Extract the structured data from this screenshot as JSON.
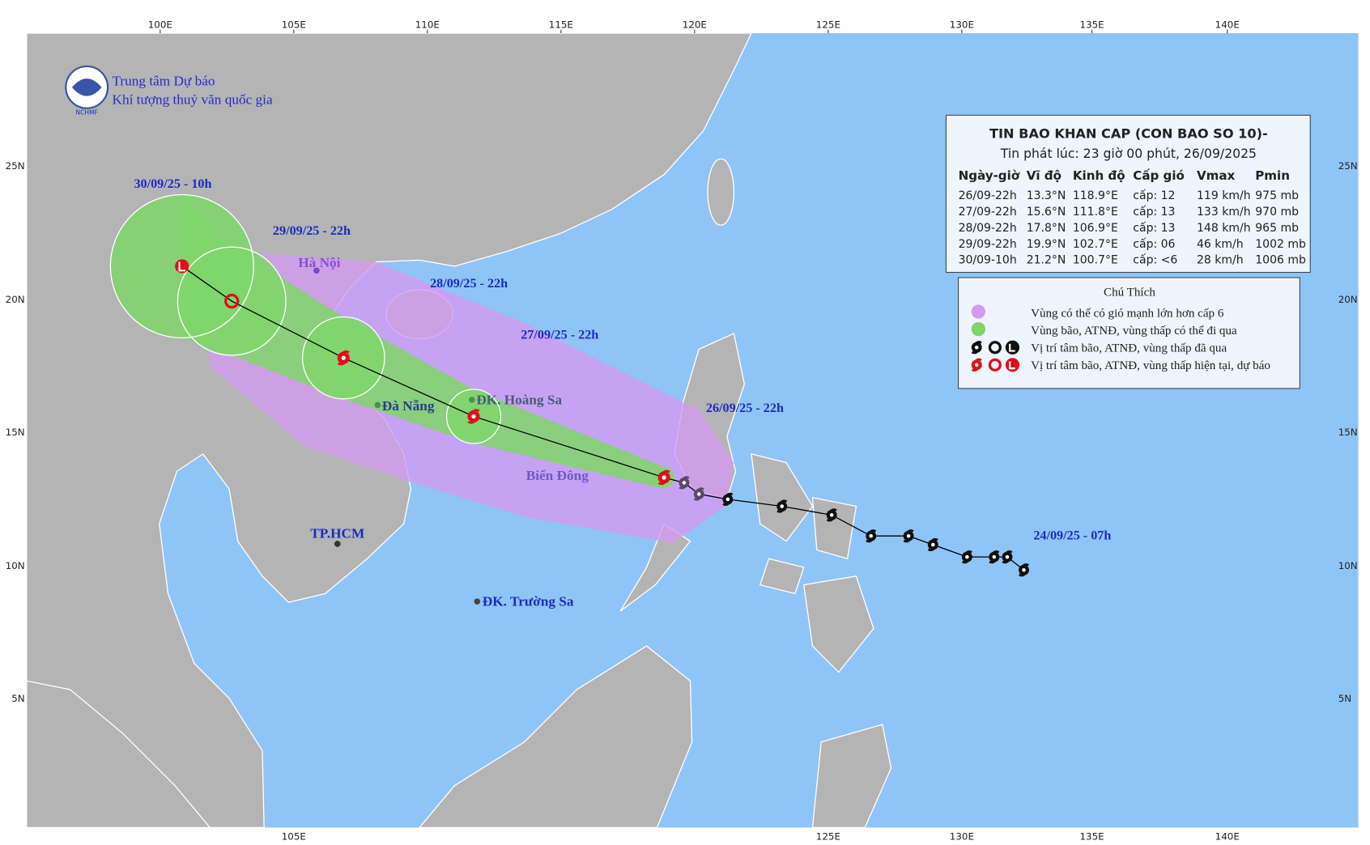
{
  "agency": {
    "line1": "Trung tâm Dự báo",
    "line2": "Khí tượng thuỷ văn quốc gia",
    "logo": "NCHMF"
  },
  "bulletin": {
    "title": "TIN BAO KHAN CAP (CON BAO SO 10)-",
    "issued": "Tin phát lúc: 23 giờ 00 phút, 26/09/2025",
    "columns": [
      "Ngày-giờ",
      "Vĩ độ",
      "Kinh độ",
      "Cấp gió",
      "Vmax",
      "Pmin"
    ],
    "rows": [
      [
        "26/09-22h",
        "13.3°N",
        "118.9°E",
        "cấp: 12",
        "119 km/h",
        "975 mb"
      ],
      [
        "27/09-22h",
        "15.6°N",
        "111.8°E",
        "cấp: 13",
        "133 km/h",
        "970 mb"
      ],
      [
        "28/09-22h",
        "17.8°N",
        "106.9°E",
        "cấp: 13",
        "148 km/h",
        "965 mb"
      ],
      [
        "29/09-22h",
        "19.9°N",
        "102.7°E",
        "cấp: 06",
        "46 km/h",
        "1002 mb"
      ],
      [
        "30/09-10h",
        "21.2°N",
        "100.7°E",
        "cấp: <6",
        "28 km/h",
        "1006 mb"
      ]
    ]
  },
  "legend": {
    "title": "Chú Thích",
    "items": [
      "Vùng có thể có gió mạnh lớn hơn cấp 6",
      "Vùng bão, ATNĐ, vùng thấp có thể đi qua",
      "Vị trí tâm bão, ATNĐ, vùng thấp đã qua",
      "Vị trí tâm bão, ATNĐ, vùng thấp hiện tại, dự báo"
    ]
  },
  "track_labels": [
    "30/09/25 - 10h",
    "29/09/25 - 22h",
    "28/09/25 - 22h",
    "27/09/25 - 22h",
    "26/09/25 - 22h",
    "24/09/25 - 07h"
  ],
  "places": [
    "Hà Nội",
    "Đà Nẵng",
    "ĐK. Hoàng Sa",
    "TP.HCM",
    "ĐK. Trường Sa",
    "Biển Đông"
  ],
  "axes": {
    "top": [
      "100E",
      "105E",
      "110E",
      "115E",
      "120E",
      "125E",
      "130E",
      "135E",
      "140E"
    ],
    "left": [
      "25N",
      "20N",
      "15N",
      "10N",
      "5N"
    ],
    "right": [
      "25N",
      "20N",
      "15N",
      "10N",
      "5N"
    ],
    "bottom": [
      "105E",
      "125E",
      "130E",
      "135E",
      "140E"
    ]
  }
}
